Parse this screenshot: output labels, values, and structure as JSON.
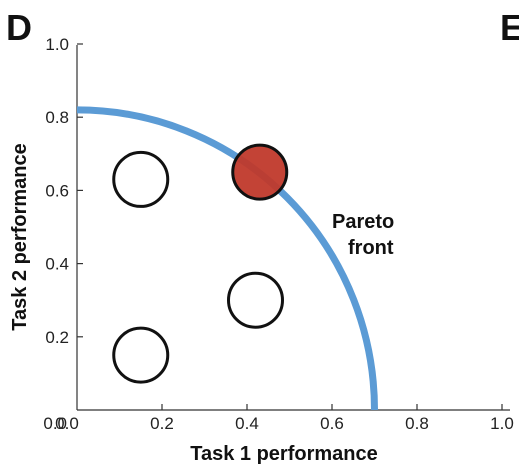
{
  "chart_data": {
    "type": "scatter",
    "panel_label": "D",
    "next_panel_label": "E",
    "xlabel": "Task 1 performance",
    "ylabel": "Task 2 performance",
    "xlim": [
      0.0,
      1.0
    ],
    "ylim": [
      0.0,
      1.0
    ],
    "x_ticks": [
      "0.0",
      "0.2",
      "0.4",
      "0.6",
      "0.8",
      "1.0"
    ],
    "y_ticks": [
      "0.0",
      "0.2",
      "0.4",
      "0.6",
      "0.8",
      "1.0"
    ],
    "grid": false,
    "pareto_front": {
      "label_line1": "Pareto",
      "label_line2": "front",
      "color": "#5b9bd5",
      "x_intercept": 0.7,
      "y_intercept": 0.82
    },
    "points": [
      {
        "x": 0.15,
        "y": 0.63,
        "fill": "#ffffff",
        "on_front": false
      },
      {
        "x": 0.42,
        "y": 0.3,
        "fill": "#ffffff",
        "on_front": false
      },
      {
        "x": 0.15,
        "y": 0.15,
        "fill": "#ffffff",
        "on_front": false
      },
      {
        "x": 0.43,
        "y": 0.65,
        "fill": "#c0392b",
        "on_front": true
      }
    ],
    "point_stroke": "#111111"
  }
}
